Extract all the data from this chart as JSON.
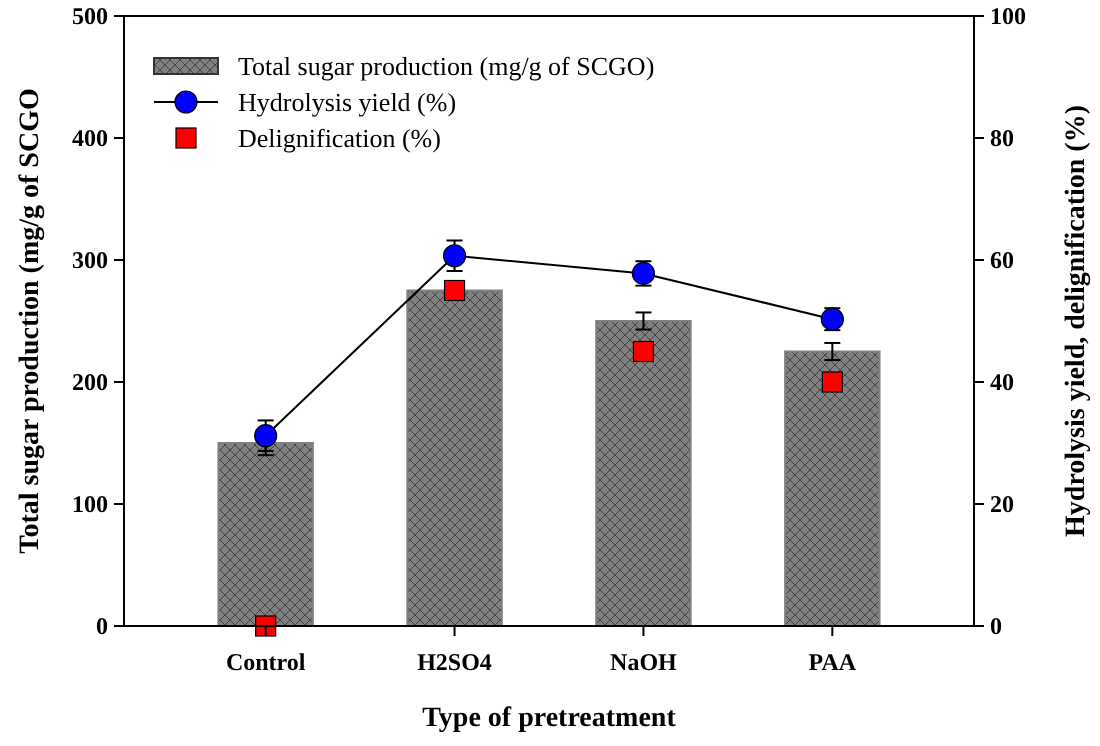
{
  "chart_data": {
    "type": "bar",
    "xlabel": "Type of pretreatment",
    "ylabel": "Total sugar production (mg/g of SCGO",
    "y2label": "Hydrolysis yield, delignification (%)",
    "categories": [
      "Control",
      "H2SO4",
      "NaOH",
      "PAA"
    ],
    "series": [
      {
        "name": "Total sugar production (mg/g of SCGO)",
        "color": "#808080",
        "values": [
          150,
          275,
          250,
          225
        ],
        "errors": [
          10,
          7,
          7,
          7
        ]
      },
      {
        "name": "Hydrolysis yield (%)",
        "type": "line",
        "axis": "y2",
        "color": "#0000ff",
        "marker": "circle",
        "values": [
          31.2,
          60.7,
          57.8,
          50.3
        ],
        "errors": [
          2.5,
          2.5,
          2,
          1.8
        ]
      },
      {
        "name": "Delignification (%)",
        "type": "scatter",
        "axis": "y2",
        "color": "#ff0000",
        "marker": "square",
        "values": [
          0,
          55,
          45,
          40
        ]
      }
    ],
    "ylim": [
      0,
      500
    ],
    "yticks": [
      0,
      100,
      200,
      300,
      400,
      500
    ],
    "y2lim": [
      0,
      100
    ],
    "y2ticks": [
      0,
      20,
      40,
      60,
      80,
      100
    ],
    "legend": "top left",
    "grid": false
  }
}
